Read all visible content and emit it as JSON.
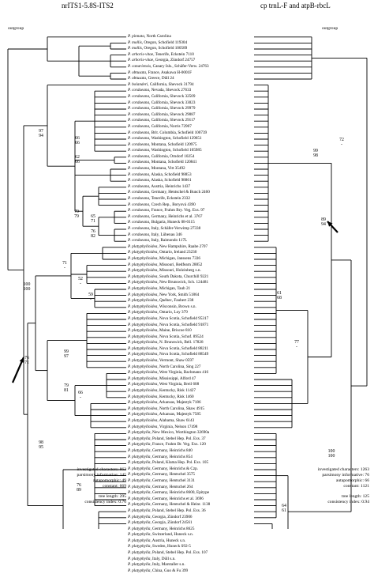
{
  "header": {
    "left": "nrITS1-5.8S-ITS2",
    "right": "cp trnL-F and atpB-rbcL"
  },
  "outgroup_left": "outgroup",
  "outgroup_right": "outgroup",
  "taxa": [
    "P. pinnata, North Carolina",
    "P. mollis, Oregon, Schofield 119304",
    "P. mollis, Oregon, Schofield 100589",
    "P. arboris-vitae, Tenerife, Eckstein 7110",
    "P. arboris-vitae, Georgia, Zündorf 24757",
    "P. canariensis, Canary Isls., Schäfer-Verw. 24763",
    "P. obtusata, France, Asakawa H-0001F",
    "P. obtusata, Greece, Düll 24",
    "P. bolanderi, California, Shevock 31794",
    "P. cordaeana, Nevada, Shevock 27633",
    "P. cordaeana, California, Shevock 32509",
    "P. cordaeana, California, Shevock 33023",
    "P. cordaeana, California, Shevock 29979",
    "P. cordaeana, California, Shevock 29087",
    "P. cordaeana, California, Shevock 29117",
    "P. cordaeana, California, Norris 72907",
    "P. cordaeana, Brit. Columbia, Schofield 100739",
    "P. cordaeana, Washington, Schofield 129651",
    "P. cordaeana, Montana, Schofield 120975",
    "P. cordaeana, Washington, Schofield 105985",
    "P. cordaeana, California, Orndorf 10254",
    "P. cordaeana, Montana, Schofield 120841",
    "P. cordaeana, Montana, Vitt 35492",
    "P. cordaeana, Alaska, Schofield 98853",
    "P. cordaeana, Alaska, Schofield 98861",
    "P. cordaeana, Austria, Heinrichs 1437",
    "P. cordaeana, Germany, Hentschel & Bunch 2460",
    "P. cordaeana, Tenerife, Eckstein 2332",
    "P. cordaeana, Czech Rep., Boryová 4390",
    "P. cordaeana, France, Frahm Bry. Veg. Exs. 97",
    "P. cordaeana, Germany, Heinrichs et al. 3767",
    "P. cordaeana, Bulgaria, Huneck 08-0115",
    "P. cordaeana, Italy, Schäfer-Verwimp 27338",
    "P. cordaeana, Italy, Lübenau 346",
    "P. cordaeana, Italy, Raimondo 117L",
    "P. platyphylloidea, New Hampshire, Raabe 2707",
    "P. platyphylloidea, Ontario, Ireland 23230",
    "P. platyphylloidea, Michigan, Janssens 7336",
    "P. platyphylloidea, Missouri, Redfearn 28852",
    "P. platyphylloidea, Missouri, Holzinberg s.n.",
    "P. platyphylloidea, South Dakota, Churchill 9221",
    "P. platyphylloidea, New Brunswick, Sch. 124481",
    "P. platyphylloidea, Michigan, Taub 21",
    "P. platyphylloidea, New York, Smith 51864",
    "P. platyphylloidea, Québec, Faubert 238",
    "P. platyphylloidea, Wisconsin, Brown s.n.",
    "P. platyphylloidea, Ontario, Loy 379",
    "P. platyphylloidea, Nova Scotia, Schofield 95317",
    "P. platyphylloidea, Nova Scotia, Schofield 91871",
    "P. platyphylloidea, Maine, Briscoe 810",
    "P. platyphylloidea, Nova Scotia, Schof. 89524",
    "P. platyphylloidea, N. Brunswick, Bell. 17828",
    "P. platyphylloidea, Nova Scotia, Schofield 88211",
    "P. platyphylloidea, Nova Scotia, Schofield 88549",
    "P. platyphylloidea, Vermont, Shaw 0597",
    "P. platyphylloidea, North Carolina, Sing 227",
    "P. platyphylloidea, West Virginia, Bachmann 416",
    "P. platyphylloidea, Mississippi, Alford 47",
    "P. platyphylloidea, West Virginia, Breil 608",
    "P. platyphylloidea, Kentucky, Risk 11427",
    "P. platyphylloidea, Kentucky, Risk 1460",
    "P. platyphylloidea, Arkansas, Majestyk 7186",
    "P. platyphylloidea, North Carolina, Shaw 4915",
    "P. platyphylloidea, Arkansas, Majestyk 7585",
    "P. platyphylloidea, Alabama, Shaw 6143",
    "P. platyphylloidea, Virginia, Nelson 17498",
    "P. platyphylla, New Mexico, Worthington 32690a",
    "P. platyphylla, Poland, Stebel Hep. Pol. Exs. 37",
    "P. platyphylla, France, Frahm Br. Veg. Exs. 120",
    "P. platyphylla, Germany, Heinrichs 840",
    "P. platyphylla, Germany, Heinrichs 854",
    "P. platyphylla, Poland, Klama Hep. Pol. Exs. 105",
    "P. platyphylla, Germany, Heinrichs & Czp.",
    "P. platyphylla, Germany, Hentschel 3575",
    "P. platyphylla, Germany, Hentschel 3131",
    "P. platyphylla, Germany, Hentschel 264",
    "P. platyphylla, Germany, Heinrichs 8600, Epitype",
    "P. platyphylla, Germany, Heinrichs et al. 3696",
    "P. platyphylla, Germany, Hentschel & Heinr. 1138",
    "P. platyphylla, Poland, Stebel Hep. Pol. Exs. 36",
    "P. platyphylla, Georgia, Zündorf 23906",
    "P. platyphylla, Georgia, Zündorf 24561",
    "P. platyphylla, Germany, Heinrichs 8625",
    "P. platyphylla, Switzerland, Huneck s.n.",
    "P. platyphylla, Austria, Huneck s.n.",
    "P. platyphylla, Sweden, Huneck S92-5",
    "P. platyphylla, Poland, Stebel Hep. Pol. Exs. 107",
    "P. platyphylla, Italy, Düll s.n.",
    "P. platyphylla, Italy, Marstaller s.n.",
    "P. platyphylla, China, Guo & Fu 399"
  ],
  "left_stats": {
    "investigated": "investigated characters: 863",
    "parsimony": "parsimony informative: 145",
    "autapomorphic": "autapomorphic: 49",
    "constant": "constant: 669",
    "tree_length": "tree length: 295",
    "ci": "consistency index: 0.76"
  },
  "right_stats": {
    "investigated": "investigated characters: 1263",
    "parsimony": "parsimony informative: 76",
    "autapomorphic": "autapomorphic: 66",
    "constant": "constant: 1121",
    "tree_length": "tree length: 125",
    "ci": "consistency index: 0.94"
  },
  "support_labels": [
    {
      "id": "l1",
      "top": "97",
      "bot": "94"
    },
    {
      "id": "l2",
      "top": "66",
      "bot": "66"
    },
    {
      "id": "l3",
      "top": "62",
      "bot": "66"
    },
    {
      "id": "l4",
      "top": "79",
      "bot": "79"
    },
    {
      "id": "l5",
      "top": "65",
      "bot": "71"
    },
    {
      "id": "l6",
      "top": "76",
      "bot": "82"
    },
    {
      "id": "l7",
      "top": "71",
      "bot": "-"
    },
    {
      "id": "l8",
      "top": "52",
      "bot": "-"
    },
    {
      "id": "l9",
      "top": "59",
      "bot": "-"
    },
    {
      "id": "l10",
      "top": "100",
      "bot": "100"
    },
    {
      "id": "l11",
      "top": "99",
      "bot": "97"
    },
    {
      "id": "l12",
      "top": "76",
      "bot": "71"
    },
    {
      "id": "l13",
      "top": "79",
      "bot": "81"
    },
    {
      "id": "l14",
      "top": "66",
      "bot": "-"
    },
    {
      "id": "l15",
      "top": "98",
      "bot": "95"
    },
    {
      "id": "l16",
      "top": "76",
      "bot": "89"
    },
    {
      "id": "r1",
      "top": "72",
      "bot": "-"
    },
    {
      "id": "r2",
      "top": "99",
      "bot": "98"
    },
    {
      "id": "r3",
      "top": "89",
      "bot": "94"
    },
    {
      "id": "r4",
      "top": "61",
      "bot": "68"
    },
    {
      "id": "r5",
      "top": "77",
      "bot": "-"
    },
    {
      "id": "r6",
      "top": "100",
      "bot": "100"
    },
    {
      "id": "r7",
      "top": "64",
      "bot": "61"
    }
  ]
}
